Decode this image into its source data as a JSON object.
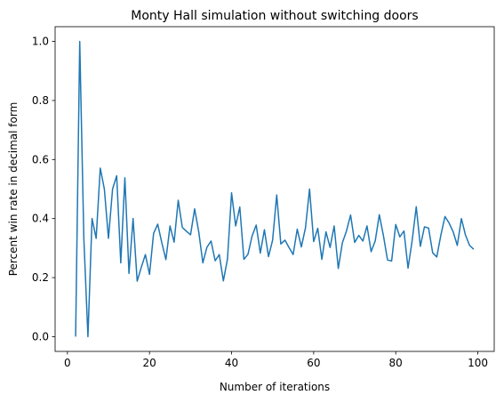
{
  "chart_data": {
    "type": "line",
    "title": "Monty Hall simulation without switching doors",
    "xlabel": "Number of iterations",
    "ylabel": "Percent win rate in decimal form",
    "xlim": [
      -3.0,
      104.0
    ],
    "ylim": [
      -0.05,
      1.05
    ],
    "x_ticks": [
      0,
      20,
      40,
      60,
      80,
      100
    ],
    "x_tick_labels": [
      "0",
      "20",
      "40",
      "60",
      "80",
      "100"
    ],
    "y_ticks": [
      0.0,
      0.2,
      0.4,
      0.6,
      0.8,
      1.0
    ],
    "y_tick_labels": [
      "0.0",
      "0.2",
      "0.4",
      "0.6",
      "0.8",
      "1.0"
    ],
    "grid": false,
    "line_color": "#1f77b4",
    "series": [
      {
        "x": [
          2,
          3,
          4,
          5,
          6,
          7,
          8,
          9,
          10,
          11,
          12,
          13,
          14,
          15,
          16,
          17,
          18,
          19,
          20,
          21,
          22,
          23,
          24,
          25,
          26,
          27,
          28,
          29,
          30,
          31,
          32,
          33,
          34,
          35,
          36,
          37,
          38,
          39,
          40,
          41,
          42,
          43,
          44,
          45,
          46,
          47,
          48,
          49,
          50,
          51,
          52,
          53,
          54,
          55,
          56,
          57,
          58,
          59,
          60,
          61,
          62,
          63,
          64,
          65,
          66,
          67,
          68,
          69,
          70,
          71,
          72,
          73,
          74,
          75,
          76,
          77,
          78,
          79,
          80,
          81,
          82,
          83,
          84,
          85,
          86,
          87,
          88,
          89,
          90,
          91,
          92,
          93,
          94,
          95,
          96,
          97,
          98,
          99
        ],
        "values": [
          0.0,
          1.0,
          0.333,
          0.0,
          0.4,
          0.333,
          0.571,
          0.5,
          0.333,
          0.5,
          0.545,
          0.25,
          0.538,
          0.214,
          0.4,
          0.188,
          0.235,
          0.278,
          0.211,
          0.35,
          0.381,
          0.318,
          0.261,
          0.375,
          0.32,
          0.462,
          0.37,
          0.357,
          0.345,
          0.433,
          0.355,
          0.25,
          0.303,
          0.324,
          0.257,
          0.278,
          0.189,
          0.263,
          0.487,
          0.375,
          0.439,
          0.262,
          0.279,
          0.341,
          0.378,
          0.283,
          0.362,
          0.271,
          0.327,
          0.48,
          0.314,
          0.327,
          0.302,
          0.278,
          0.364,
          0.304,
          0.368,
          0.5,
          0.322,
          0.367,
          0.262,
          0.355,
          0.302,
          0.375,
          0.231,
          0.318,
          0.358,
          0.412,
          0.319,
          0.343,
          0.324,
          0.375,
          0.288,
          0.324,
          0.413,
          0.342,
          0.26,
          0.256,
          0.38,
          0.338,
          0.358,
          0.232,
          0.325,
          0.44,
          0.306,
          0.372,
          0.368,
          0.284,
          0.27,
          0.344,
          0.407,
          0.385,
          0.355,
          0.309,
          0.4,
          0.344,
          0.309,
          0.296
        ]
      }
    ]
  }
}
